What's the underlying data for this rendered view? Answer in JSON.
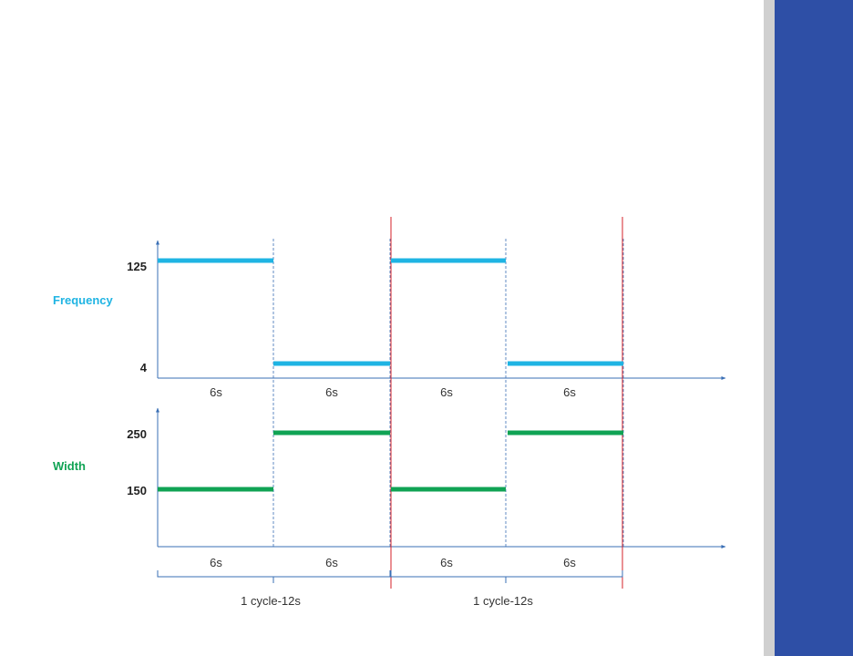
{
  "colors": {
    "frequency": "#1fb4e3",
    "width": "#10a354",
    "axis": "#3a6fb5",
    "divider": "#3a6fb5",
    "cycle_marker": "#d6202a",
    "side_panel": "#2e4fa6",
    "side_strip": "#d0d0d0"
  },
  "frequency": {
    "label": "Frequency",
    "high_label": "125",
    "low_label": "4",
    "levels": [
      "high",
      "low",
      "high",
      "low"
    ],
    "durations": [
      "6s",
      "6s",
      "6s",
      "6s"
    ]
  },
  "width": {
    "label": "Width",
    "high_label": "250",
    "low_label": "150",
    "levels": [
      "low",
      "high",
      "low",
      "high"
    ],
    "durations": [
      "6s",
      "6s",
      "6s",
      "6s"
    ]
  },
  "cycles": [
    "1 cycle-12s",
    "1 cycle-12s"
  ]
}
